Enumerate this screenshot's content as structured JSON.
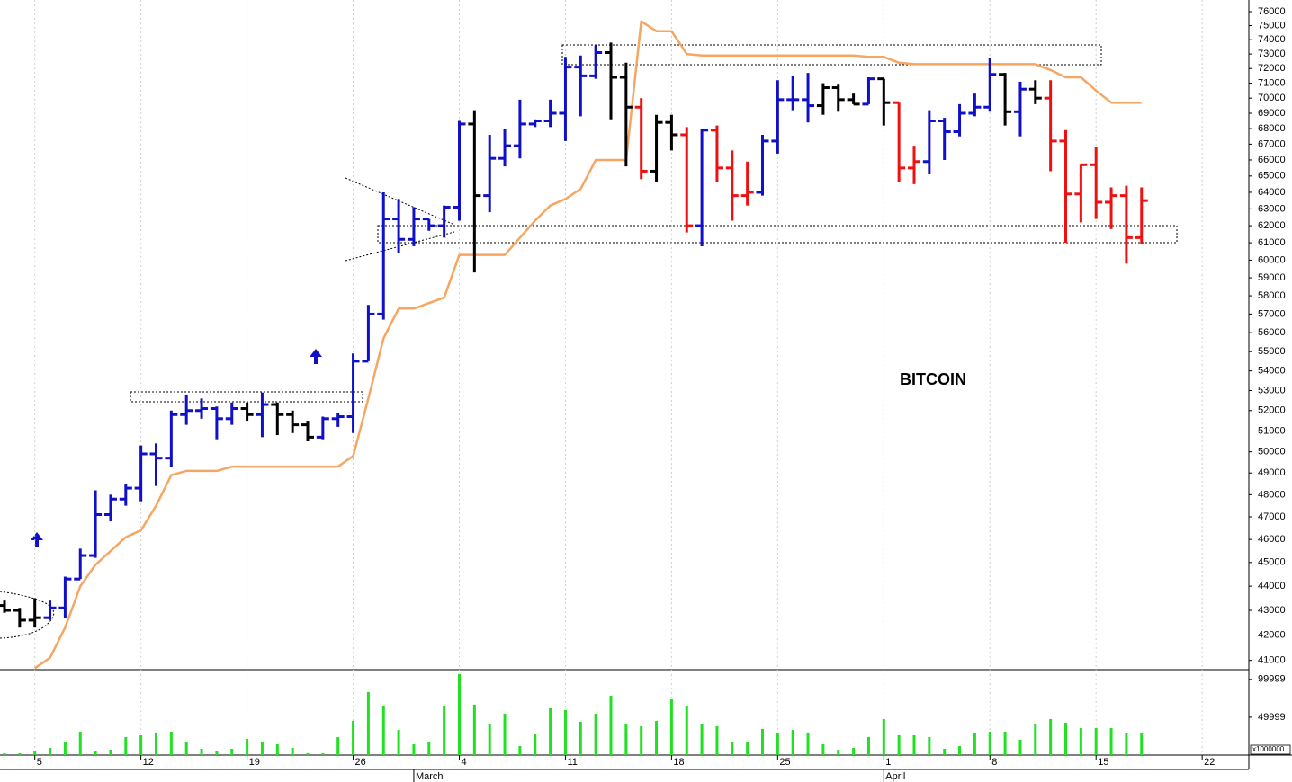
{
  "chart_data": {
    "type": "ohlc",
    "title": "BITCOIN",
    "log_scale": true,
    "grid": true,
    "ylim": [
      40640,
      76850
    ],
    "yticks": [
      41000,
      42000,
      43000,
      44000,
      45000,
      46000,
      47000,
      48000,
      49000,
      50000,
      51000,
      52000,
      53000,
      54000,
      55000,
      56000,
      57000,
      58000,
      59000,
      60000,
      61000,
      62000,
      63000,
      64000,
      65000,
      66000,
      67000,
      68000,
      69000,
      70000,
      71000,
      72000,
      73000,
      74000,
      75000,
      76000
    ],
    "categories": [
      null,
      null,
      "5",
      null,
      null,
      null,
      null,
      null,
      null,
      "12",
      null,
      null,
      null,
      null,
      null,
      null,
      "19",
      null,
      null,
      null,
      null,
      null,
      null,
      "26",
      null,
      null,
      null,
      null,
      null,
      null,
      "4",
      null,
      null,
      null,
      null,
      null,
      null,
      "11",
      null,
      null,
      null,
      null,
      null,
      null,
      "18",
      null,
      null,
      null,
      null,
      null,
      null,
      "25",
      null,
      null,
      null,
      null,
      null,
      null,
      "1",
      null,
      null,
      null,
      null,
      null,
      null,
      "8",
      null,
      null,
      null,
      null,
      null,
      null,
      "15",
      null,
      null,
      null,
      null,
      null,
      null,
      "22"
    ],
    "month_categories": [
      null,
      null,
      null,
      null,
      null,
      null,
      null,
      null,
      null,
      null,
      null,
      null,
      null,
      null,
      null,
      null,
      null,
      null,
      null,
      null,
      null,
      null,
      null,
      null,
      null,
      null,
      null,
      "March",
      null,
      null,
      null,
      null,
      null,
      null,
      null,
      null,
      null,
      null,
      null,
      null,
      null,
      null,
      null,
      null,
      null,
      null,
      null,
      null,
      null,
      null,
      null,
      null,
      null,
      null,
      null,
      null,
      null,
      null,
      "April",
      null,
      null,
      null,
      null,
      null,
      null,
      null,
      null,
      null,
      null,
      null,
      null,
      null,
      null,
      null,
      null,
      null,
      null,
      null,
      null,
      null
    ],
    "open": [
      43200,
      43000,
      42600,
      42700,
      43100,
      44300,
      45300,
      47100,
      47800,
      48300,
      49900,
      49700,
      51800,
      52000,
      52100,
      51600,
      52100,
      51800,
      52300,
      51800,
      51300,
      50700,
      51600,
      51700,
      54500,
      57000,
      62400,
      61200,
      62400,
      62000,
      63100,
      68300,
      63800,
      66100,
      66900,
      68300,
      68500,
      69000,
      72100,
      71500,
      73100,
      71400,
      69400,
      65300,
      68400,
      67600,
      62000,
      67900,
      65500,
      63800,
      64000,
      67200,
      69900,
      69900,
      69500,
      70700,
      69900,
      69600,
      71300,
      69700,
      65500,
      65900,
      68500,
      67800,
      69000,
      69400,
      71600,
      69100,
      70600,
      70000,
      67200,
      63900,
      65700,
      63400,
      63800,
      61300,
      null,
      null,
      null,
      null
    ],
    "high": [
      43400,
      43100,
      43500,
      43400,
      44400,
      45600,
      48200,
      48000,
      48500,
      50300,
      50400,
      52000,
      52800,
      52600,
      52200,
      52400,
      52400,
      52900,
      52400,
      52000,
      51500,
      51700,
      51900,
      54900,
      57500,
      64000,
      63600,
      63100,
      62400,
      63200,
      68500,
      69200,
      67600,
      68000,
      69900,
      68600,
      69900,
      72800,
      72900,
      73600,
      73800,
      72400,
      70000,
      68900,
      68900,
      68100,
      68000,
      68200,
      66600,
      65900,
      67600,
      71200,
      71500,
      71700,
      71000,
      70900,
      70300,
      71400,
      71300,
      69700,
      66900,
      69200,
      68700,
      69600,
      70300,
      72700,
      71700,
      71100,
      71200,
      71200,
      67900,
      65700,
      66800,
      64300,
      64400,
      64300,
      null,
      null,
      null,
      null
    ],
    "low": [
      42900,
      42300,
      42300,
      42600,
      42700,
      44300,
      45200,
      46800,
      47500,
      47700,
      48400,
      49300,
      51300,
      51600,
      50600,
      51300,
      51500,
      50700,
      50800,
      50900,
      50500,
      50600,
      51200,
      50900,
      54500,
      56700,
      60400,
      60800,
      61700,
      61300,
      62300,
      59300,
      62800,
      65600,
      66100,
      68100,
      68100,
      67200,
      68800,
      71300,
      68600,
      65600,
      64800,
      64600,
      66600,
      61600,
      60800,
      64600,
      62300,
      63200,
      63800,
      66400,
      69200,
      68400,
      68900,
      69100,
      69600,
      69600,
      68200,
      64600,
      64500,
      65100,
      66000,
      67500,
      68800,
      69100,
      68200,
      67500,
      69600,
      65300,
      61000,
      62200,
      62400,
      61800,
      59800,
      60900,
      null,
      null,
      null,
      null
    ],
    "close": [
      43000,
      42600,
      42700,
      43100,
      44300,
      45300,
      47100,
      47800,
      48300,
      49900,
      49700,
      51800,
      52000,
      52100,
      51600,
      52100,
      51800,
      52300,
      51800,
      51300,
      50700,
      51600,
      51700,
      54500,
      57000,
      62400,
      61200,
      62400,
      62000,
      63100,
      68300,
      63800,
      66100,
      66900,
      68300,
      68500,
      69000,
      72100,
      71500,
      73100,
      71400,
      69400,
      65300,
      68400,
      67600,
      62000,
      67900,
      65500,
      63800,
      64000,
      67200,
      69900,
      69900,
      69500,
      70700,
      69900,
      69600,
      71300,
      69700,
      65500,
      65900,
      68500,
      67800,
      69000,
      69400,
      71600,
      69100,
      70600,
      70000,
      67200,
      63900,
      65700,
      63400,
      63800,
      61300,
      63500,
      null,
      null,
      null,
      null
    ],
    "bar_colors": [
      "#000000",
      "#000000",
      "#000000",
      "#1010c8",
      "#1010c8",
      "#1010c8",
      "#1010c8",
      "#1010c8",
      "#1010c8",
      "#1010c8",
      "#1010c8",
      "#1010c8",
      "#1010c8",
      "#1010c8",
      "#1010c8",
      "#1010c8",
      "#000000",
      "#1010c8",
      "#000000",
      "#000000",
      "#000000",
      "#1010c8",
      "#1010c8",
      "#1010c8",
      "#1010c8",
      "#1010c8",
      "#1010c8",
      "#1010c8",
      "#1010c8",
      "#1010c8",
      "#1010c8",
      "#000000",
      "#1010c8",
      "#1010c8",
      "#1010c8",
      "#1010c8",
      "#1010c8",
      "#1010c8",
      "#1010c8",
      "#1010c8",
      "#000000",
      "#000000",
      "#ee1111",
      "#000000",
      "#000000",
      "#ee1111",
      "#1010c8",
      "#ee1111",
      "#ee1111",
      "#ee1111",
      "#1010c8",
      "#1010c8",
      "#1010c8",
      "#1010c8",
      "#000000",
      "#000000",
      "#000000",
      "#1010c8",
      "#000000",
      "#ee1111",
      "#ee1111",
      "#1010c8",
      "#1010c8",
      "#1010c8",
      "#1010c8",
      "#1010c8",
      "#000000",
      "#1010c8",
      "#000000",
      "#ee1111",
      "#ee1111",
      "#ee1111",
      "#ee1111",
      "#ee1111",
      "#ee1111",
      "#ee1111",
      null,
      null,
      null,
      null
    ],
    "line": {
      "color": "#f6a662",
      "values": [
        null,
        null,
        40700,
        41100,
        42300,
        44000,
        44900,
        45500,
        46100,
        46400,
        47500,
        48900,
        49100,
        49100,
        49100,
        49300,
        49300,
        49300,
        49300,
        49300,
        49300,
        49300,
        49300,
        49800,
        52600,
        55700,
        57300,
        57300,
        57600,
        57900,
        60300,
        60300,
        60300,
        60300,
        61300,
        62300,
        63200,
        63600,
        64200,
        66000,
        66000,
        66000,
        75300,
        74600,
        74600,
        73000,
        72900,
        72900,
        72900,
        72900,
        72900,
        72900,
        72900,
        72900,
        72900,
        72900,
        72900,
        72800,
        72800,
        72400,
        72300,
        72300,
        72300,
        72300,
        72300,
        72300,
        72300,
        72300,
        72300,
        71900,
        71400,
        71400,
        70500,
        69700,
        69700,
        69700,
        null,
        null,
        null,
        null
      ]
    },
    "volume": {
      "color": "#22e022",
      "unit_label": "x1000000",
      "ylim": [
        0,
        120000
      ],
      "yticks": [
        49999,
        99999
      ],
      "values": [
        2400,
        2400,
        6000,
        9500,
        16700,
        30900,
        4800,
        7100,
        23800,
        26200,
        29800,
        30900,
        17900,
        8300,
        6000,
        8300,
        21400,
        17900,
        14300,
        9500,
        2400,
        2400,
        23800,
        45200,
        83300,
        65500,
        33300,
        14300,
        16700,
        65500,
        107100,
        66600,
        40500,
        54700,
        11900,
        27400,
        61900,
        59500,
        44000,
        54700,
        78500,
        40500,
        38100,
        45200,
        73800,
        65500,
        40500,
        38100,
        16700,
        16700,
        34500,
        28600,
        33300,
        29800,
        14300,
        7100,
        9500,
        23800,
        47600,
        26200,
        26200,
        23800,
        8300,
        11900,
        28600,
        30900,
        30900,
        20200,
        40500,
        47600,
        42800,
        35700,
        35700,
        35700,
        28600,
        28600,
        null,
        null,
        null,
        null
      ]
    }
  }
}
